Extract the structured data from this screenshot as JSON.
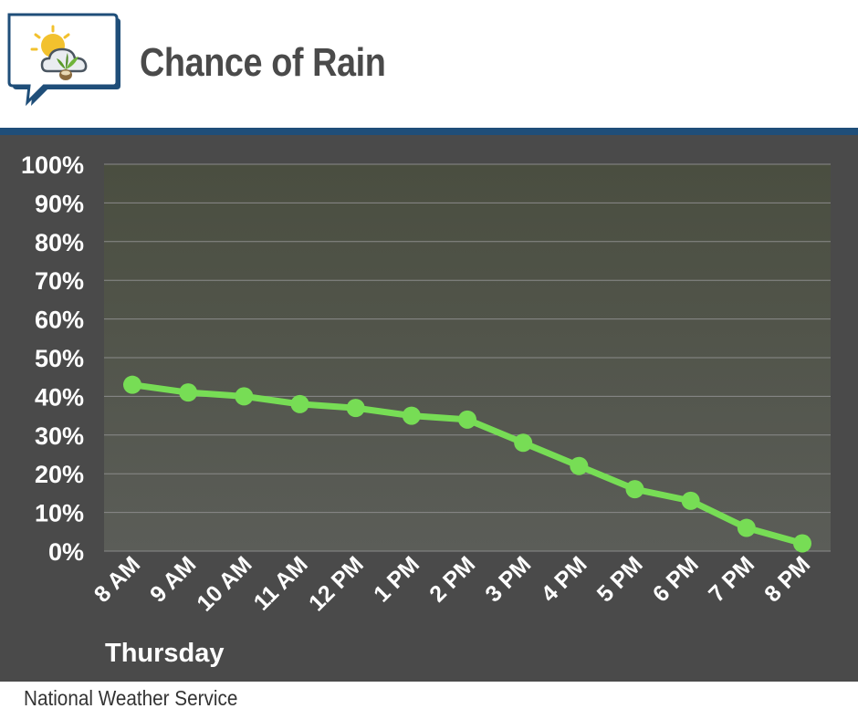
{
  "header": {
    "title": "Chance of Rain",
    "logo_icon": "weather-partly-cloudy-plant-icon"
  },
  "footer": {
    "source": "National Weather Service"
  },
  "colors": {
    "accent_bar": "#1f4e79",
    "panel_bg": "#4a4a4a",
    "line": "#77dd55",
    "gridline": "#8a8a8a"
  },
  "chart_data": {
    "type": "line",
    "title": "Chance of Rain",
    "xlabel": "Thursday",
    "ylabel": "",
    "categories": [
      "8 AM",
      "9 AM",
      "10 AM",
      "11 AM",
      "12 PM",
      "1 PM",
      "2 PM",
      "3 PM",
      "4 PM",
      "5 PM",
      "6 PM",
      "7 PM",
      "8 PM"
    ],
    "series": [
      {
        "name": "Chance of Rain",
        "values": [
          43,
          41,
          40,
          38,
          37,
          35,
          34,
          28,
          22,
          16,
          13,
          6,
          2
        ]
      }
    ],
    "ylim": [
      0,
      100
    ],
    "yticks": [
      "0%",
      "10%",
      "20%",
      "30%",
      "40%",
      "50%",
      "60%",
      "70%",
      "80%",
      "90%",
      "100%"
    ],
    "grid": true,
    "legend": "none"
  }
}
